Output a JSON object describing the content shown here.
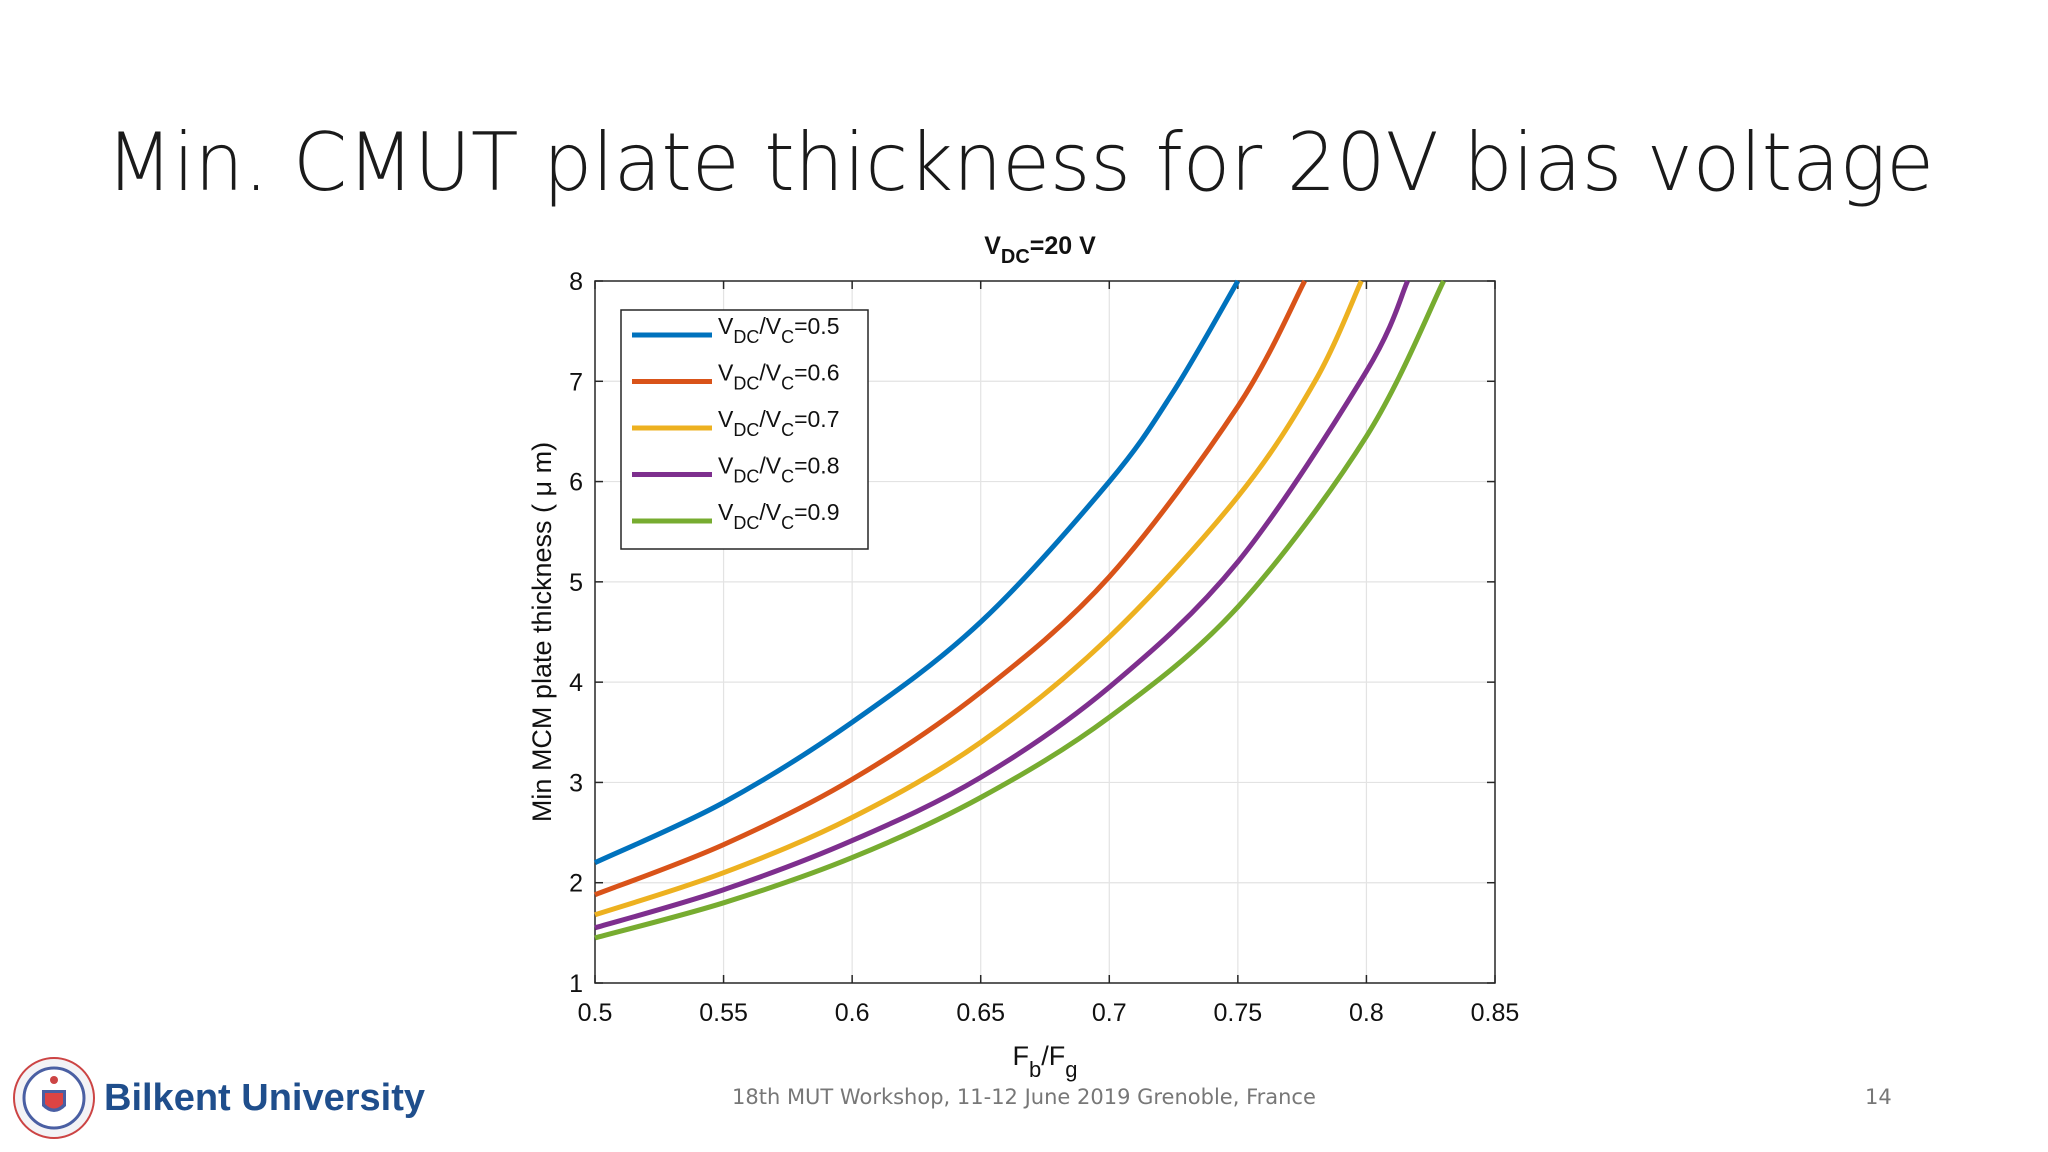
{
  "slide": {
    "title": "Min. CMUT plate thickness for 20V bias voltage",
    "footer": "18th MUT Workshop, 11-12 June 2019 Grenoble, France",
    "page_number": "14",
    "logo": {
      "name": "Bilkent University",
      "seal_text": "Bilkent University"
    }
  },
  "colors": {
    "series": [
      "#0072BD",
      "#D95319",
      "#EDB120",
      "#7E2F8E",
      "#77AC30"
    ]
  },
  "chart_data": {
    "type": "line",
    "title": {
      "main": "V",
      "sub": "DC",
      "rest": "=20 V"
    },
    "xlabel": {
      "main": "F",
      "sub1": "b",
      "mid": "/F",
      "sub2": "g"
    },
    "ylabel": "Min MCM plate thickness ( μ m)",
    "xlim": [
      0.5,
      0.85
    ],
    "ylim": [
      1,
      8
    ],
    "grid": true,
    "legend_position": "top-left",
    "xticks": [
      "0.5",
      "0.55",
      "0.6",
      "0.65",
      "0.7",
      "0.75",
      "0.8",
      "0.85"
    ],
    "yticks": [
      "1",
      "2",
      "3",
      "4",
      "5",
      "6",
      "7",
      "8"
    ],
    "series": [
      {
        "name": "VDC/VC=0.5",
        "label": {
          "a": "V",
          "b": "DC",
          "c": "/V",
          "d": "C",
          "e": "=0.5"
        },
        "x": [
          0.5,
          0.55,
          0.6,
          0.65,
          0.7,
          0.725,
          0.75
        ],
        "y": [
          2.2,
          2.8,
          3.6,
          4.6,
          6.0,
          6.9,
          8.0
        ]
      },
      {
        "name": "VDC/VC=0.6",
        "label": {
          "a": "V",
          "b": "DC",
          "c": "/V",
          "d": "C",
          "e": "=0.6"
        },
        "x": [
          0.5,
          0.55,
          0.6,
          0.65,
          0.7,
          0.75,
          0.776
        ],
        "y": [
          1.88,
          2.38,
          3.03,
          3.9,
          5.05,
          6.75,
          8.0
        ]
      },
      {
        "name": "VDC/VC=0.7",
        "label": {
          "a": "V",
          "b": "DC",
          "c": "/V",
          "d": "C",
          "e": "=0.7"
        },
        "x": [
          0.5,
          0.55,
          0.6,
          0.65,
          0.7,
          0.75,
          0.78,
          0.798
        ],
        "y": [
          1.68,
          2.1,
          2.65,
          3.4,
          4.45,
          5.85,
          7.0,
          8.0
        ]
      },
      {
        "name": "VDC/VC=0.8",
        "label": {
          "a": "V",
          "b": "DC",
          "c": "/V",
          "d": "C",
          "e": "=0.8"
        },
        "x": [
          0.5,
          0.55,
          0.6,
          0.65,
          0.7,
          0.75,
          0.8,
          0.816
        ],
        "y": [
          1.55,
          1.93,
          2.42,
          3.05,
          3.95,
          5.2,
          7.1,
          8.0
        ]
      },
      {
        "name": "VDC/VC=0.9",
        "label": {
          "a": "V",
          "b": "DC",
          "c": "/V",
          "d": "C",
          "e": "=0.9"
        },
        "x": [
          0.5,
          0.55,
          0.6,
          0.65,
          0.7,
          0.75,
          0.8,
          0.83
        ],
        "y": [
          1.45,
          1.8,
          2.25,
          2.85,
          3.65,
          4.75,
          6.45,
          8.0
        ]
      }
    ]
  }
}
